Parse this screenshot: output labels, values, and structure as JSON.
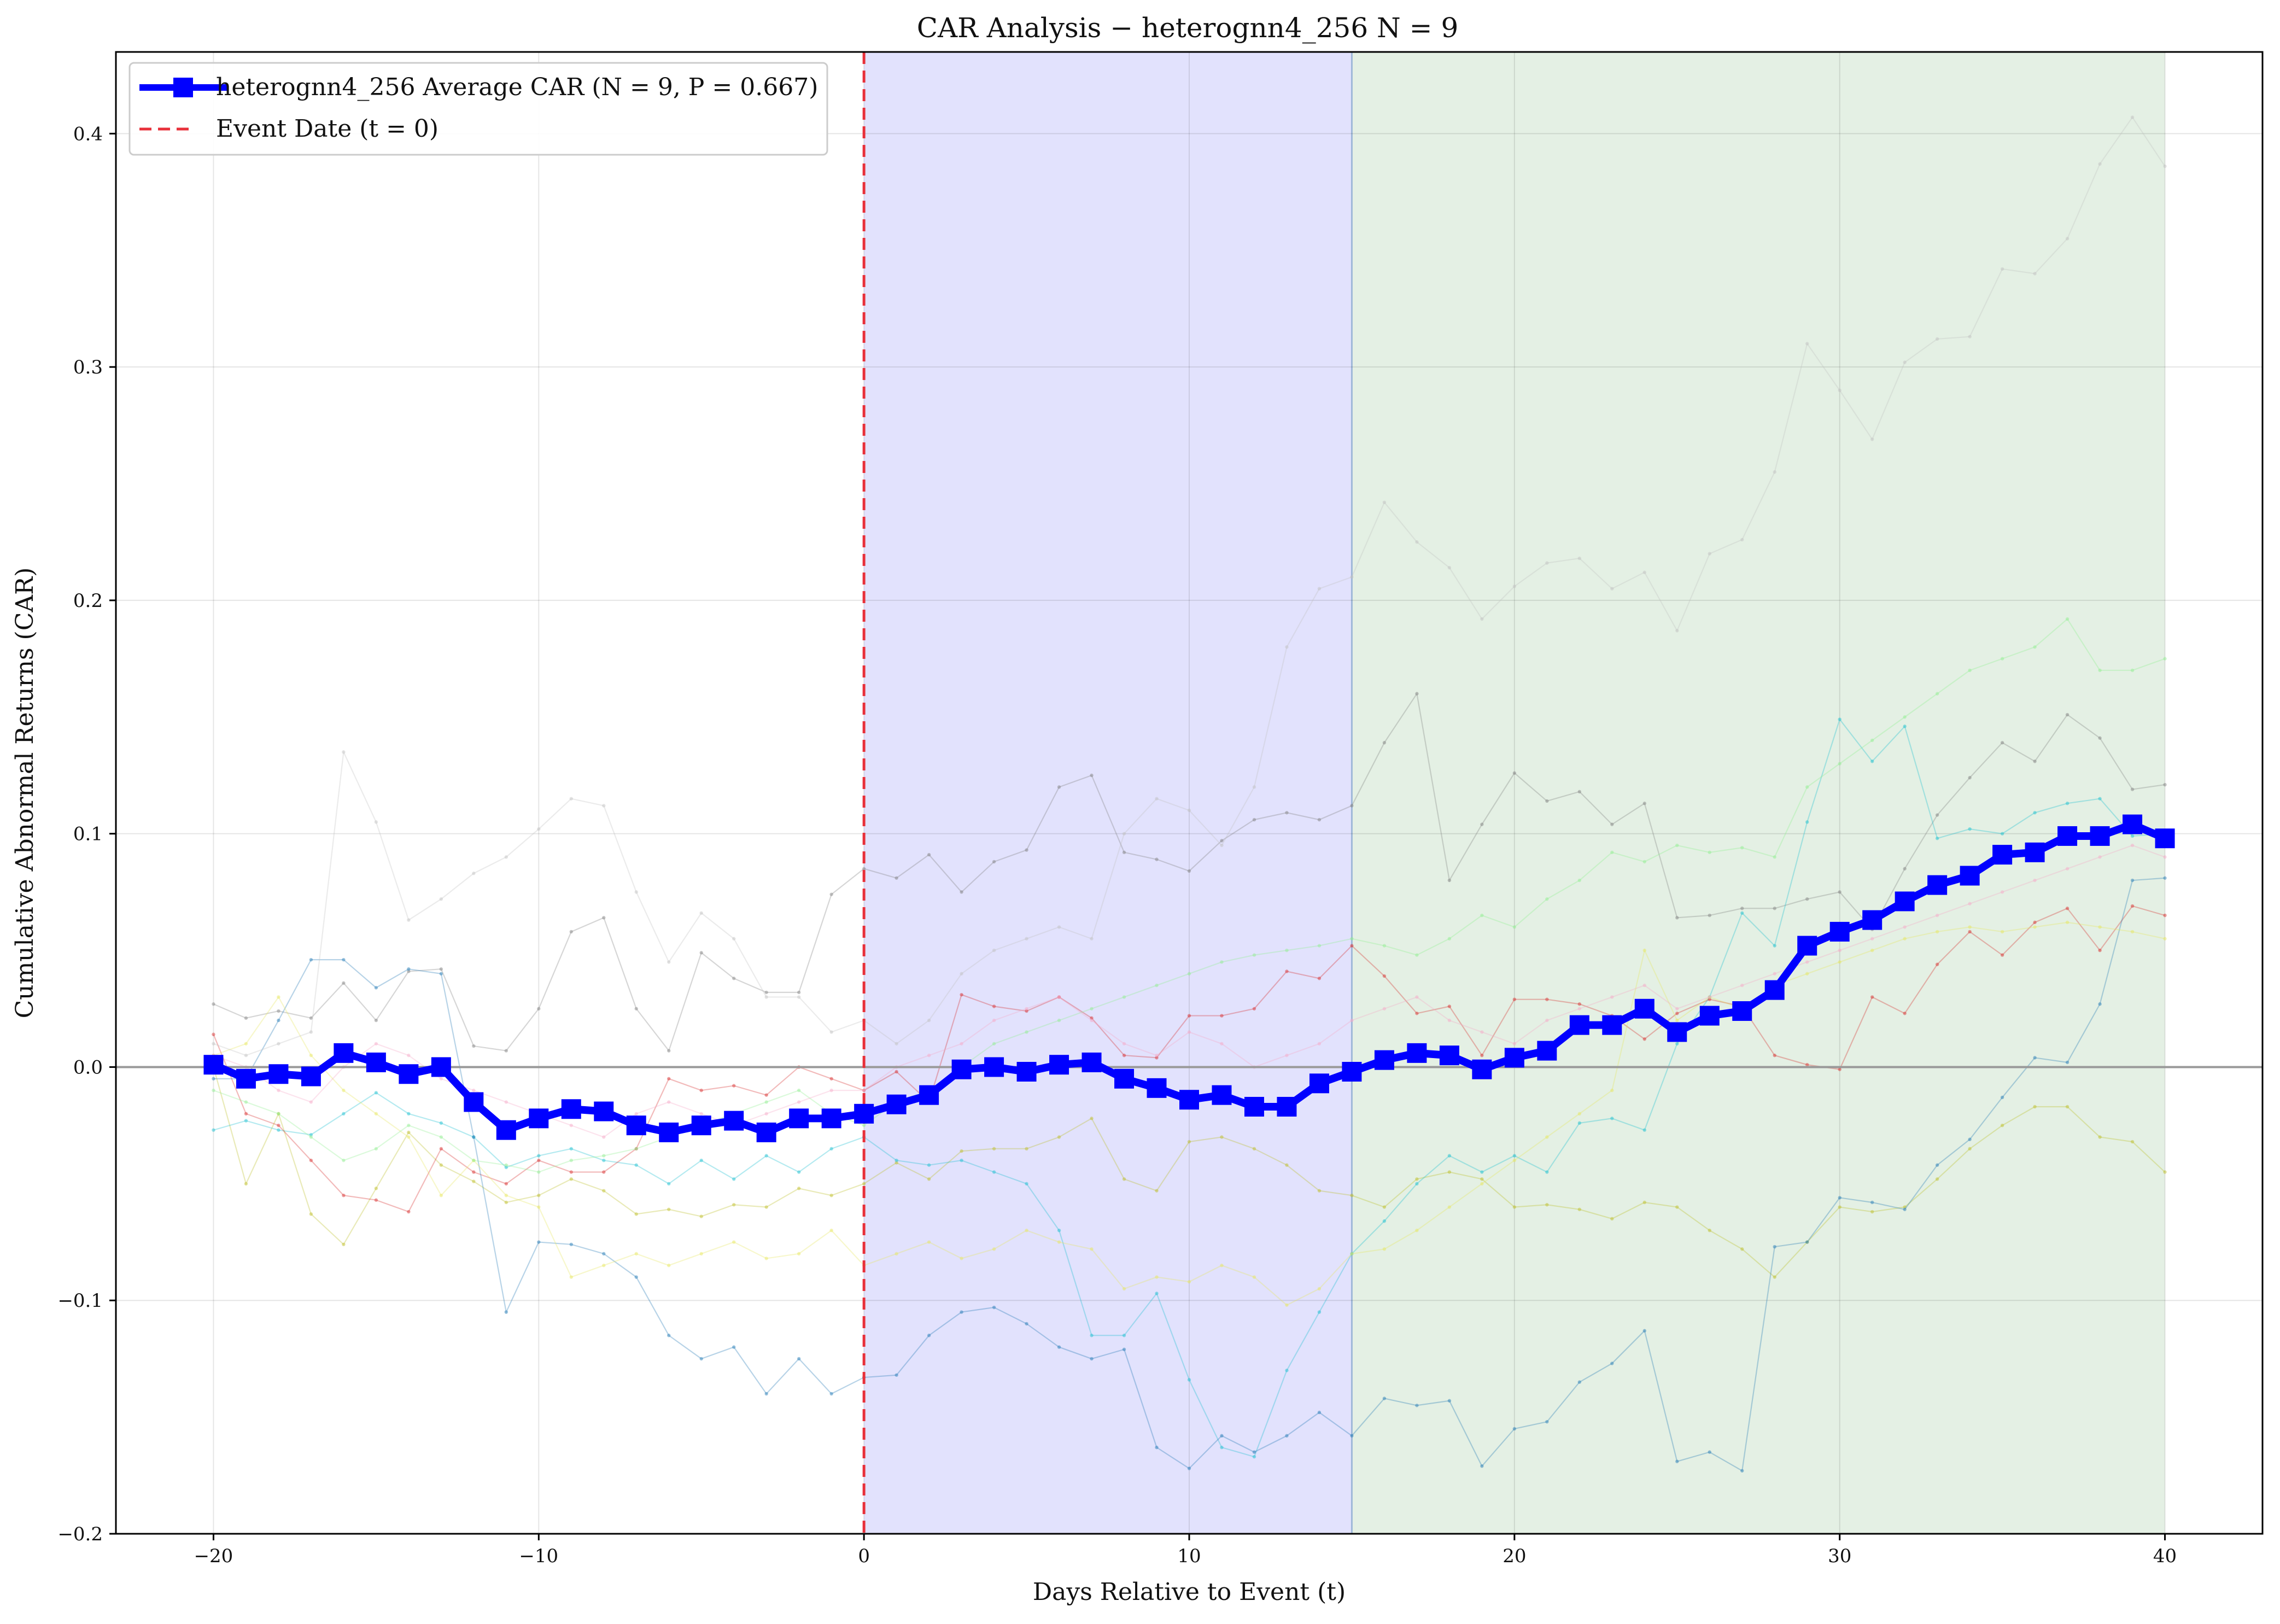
{
  "chart_data": {
    "type": "line",
    "title": "CAR Analysis − heterognn4_256    N = 9",
    "xlabel": "Days Relative to Event (t)",
    "ylabel": "Cumulative Abnormal Returns (CAR)",
    "xlim": [
      -23,
      43
    ],
    "ylim": [
      -0.2,
      0.435
    ],
    "xticks": [
      -20,
      -10,
      0,
      10,
      20,
      30,
      40
    ],
    "xtick_labels": [
      "−20",
      "−10",
      "0",
      "10",
      "20",
      "30",
      "40"
    ],
    "yticks": [
      -0.2,
      -0.1,
      0.0,
      0.1,
      0.2,
      0.3,
      0.4
    ],
    "ytick_labels": [
      "−0.2",
      "−0.1",
      "0.0",
      "0.1",
      "0.2",
      "0.3",
      "0.4"
    ],
    "grid": true,
    "legend_position": "top-left",
    "legend": [
      {
        "label": "heterognn4_256 Average CAR    (N = 9, P = 0.667)",
        "color": "#0000ff",
        "style": "solid-square-marker"
      },
      {
        "label": "Event Date    (t = 0)",
        "color": "#e8303a",
        "style": "dashed"
      }
    ],
    "event_line": {
      "x": 0,
      "color": "#e8303a"
    },
    "zero_line": {
      "y": 0,
      "color": "#999999"
    },
    "shaded_regions": [
      {
        "x0": 0,
        "x1": 15,
        "color": "#e2e2fd"
      },
      {
        "x0": 15,
        "x1": 40,
        "color": "#e4f0e4"
      }
    ],
    "average_series": {
      "name": "heterognn4_256 Average CAR",
      "color": "#0000ff",
      "x": [
        -20,
        -19,
        -18,
        -17,
        -16,
        -15,
        -14,
        -13,
        -12,
        -11,
        -10,
        -9,
        -8,
        -7,
        -6,
        -5,
        -4,
        -3,
        -2,
        -1,
        0,
        1,
        2,
        3,
        4,
        5,
        6,
        7,
        8,
        9,
        10,
        11,
        12,
        13,
        14,
        15,
        16,
        17,
        18,
        19,
        20,
        21,
        22,
        23,
        24,
        25,
        26,
        27,
        28,
        29,
        30,
        31,
        32,
        33,
        34,
        35,
        36,
        37,
        38,
        39,
        40
      ],
      "y": [
        0.001,
        -0.005,
        -0.003,
        -0.004,
        0.006,
        0.002,
        -0.003,
        0.0,
        -0.015,
        -0.027,
        -0.022,
        -0.018,
        -0.019,
        -0.025,
        -0.028,
        -0.025,
        -0.023,
        -0.028,
        -0.022,
        -0.022,
        -0.02,
        -0.016,
        -0.012,
        -0.001,
        0.0,
        -0.002,
        0.001,
        0.002,
        -0.005,
        -0.009,
        -0.014,
        -0.012,
        -0.017,
        -0.017,
        -0.007,
        -0.002,
        0.003,
        0.006,
        0.005,
        -0.001,
        0.004,
        0.007,
        0.018,
        0.018,
        0.025,
        0.015,
        0.022,
        0.024,
        0.033,
        0.052,
        0.058,
        0.063,
        0.071,
        0.078,
        0.082,
        0.091,
        0.092,
        0.099,
        0.099,
        0.104,
        0.098
      ]
    },
    "individual_series": [
      {
        "color": "#7f7f7f",
        "y": [
          0.027,
          0.021,
          0.024,
          0.021,
          0.036,
          0.02,
          0.041,
          0.042,
          0.009,
          0.007,
          0.025,
          0.058,
          0.064,
          0.025,
          0.007,
          0.049,
          0.038,
          0.032,
          0.032,
          0.074,
          0.085,
          0.081,
          0.091,
          0.075,
          0.088,
          0.093,
          0.12,
          0.125,
          0.092,
          0.089,
          0.084,
          0.097,
          0.106,
          0.109,
          0.106,
          0.112,
          0.139,
          0.16,
          0.08,
          0.104,
          0.126,
          0.114,
          0.118,
          0.104,
          0.113,
          0.064,
          0.065,
          0.068,
          0.068,
          0.072,
          0.075,
          0.059,
          0.085,
          0.108,
          0.124,
          0.139,
          0.131,
          0.151,
          0.141,
          0.119,
          0.121
        ]
      },
      {
        "color": "#bcbd22",
        "y": [
          0.0,
          -0.05,
          -0.02,
          -0.063,
          -0.076,
          -0.052,
          -0.028,
          -0.042,
          -0.049,
          -0.058,
          -0.055,
          -0.048,
          -0.053,
          -0.063,
          -0.061,
          -0.064,
          -0.059,
          -0.06,
          -0.052,
          -0.055,
          -0.05,
          -0.041,
          -0.048,
          -0.036,
          -0.035,
          -0.035,
          -0.03,
          -0.022,
          -0.048,
          -0.053,
          -0.032,
          -0.03,
          -0.035,
          -0.042,
          -0.053,
          -0.055,
          -0.06,
          -0.048,
          -0.045,
          -0.048,
          -0.06,
          -0.059,
          -0.061,
          -0.065,
          -0.058,
          -0.06,
          -0.07,
          -0.078,
          -0.09,
          -0.075,
          -0.06,
          -0.062,
          -0.06,
          -0.048,
          -0.035,
          -0.025,
          -0.017,
          -0.017,
          -0.03,
          -0.032,
          -0.045
        ]
      },
      {
        "color": "#17becf",
        "y": [
          -0.027,
          -0.023,
          -0.027,
          -0.029,
          -0.02,
          -0.011,
          -0.02,
          -0.024,
          -0.03,
          -0.043,
          -0.038,
          -0.035,
          -0.04,
          -0.042,
          -0.05,
          -0.04,
          -0.048,
          -0.038,
          -0.045,
          -0.035,
          -0.03,
          -0.04,
          -0.042,
          -0.04,
          -0.045,
          -0.05,
          -0.07,
          -0.115,
          -0.115,
          -0.097,
          -0.134,
          -0.163,
          -0.167,
          -0.13,
          -0.105,
          -0.08,
          -0.066,
          -0.05,
          -0.038,
          -0.045,
          -0.038,
          -0.045,
          -0.024,
          -0.022,
          -0.027,
          0.01,
          0.03,
          0.066,
          0.052,
          0.105,
          0.149,
          0.131,
          0.146,
          0.098,
          0.102,
          0.1,
          0.109,
          0.113,
          0.115,
          0.099,
          0.1
        ]
      },
      {
        "color": "#d62728",
        "y": [
          0.014,
          -0.02,
          -0.025,
          -0.04,
          -0.055,
          -0.057,
          -0.062,
          -0.035,
          -0.045,
          -0.05,
          -0.04,
          -0.045,
          -0.045,
          -0.035,
          -0.005,
          -0.01,
          -0.008,
          -0.012,
          0.0,
          -0.005,
          -0.01,
          -0.002,
          -0.015,
          0.031,
          0.026,
          0.024,
          0.03,
          0.021,
          0.005,
          0.004,
          0.022,
          0.022,
          0.025,
          0.041,
          0.038,
          0.052,
          0.039,
          0.023,
          0.026,
          0.005,
          0.029,
          0.029,
          0.027,
          0.022,
          0.012,
          0.023,
          0.029,
          0.026,
          0.005,
          0.001,
          -0.001,
          0.03,
          0.023,
          0.044,
          0.058,
          0.048,
          0.062,
          0.068,
          0.05,
          0.069,
          0.065
        ]
      },
      {
        "color": "#1f77b4",
        "y": [
          -0.005,
          -0.005,
          0.02,
          0.046,
          0.046,
          0.034,
          0.042,
          0.04,
          -0.03,
          -0.105,
          -0.075,
          -0.076,
          -0.08,
          -0.09,
          -0.115,
          -0.125,
          -0.12,
          -0.14,
          -0.125,
          -0.14,
          -0.133,
          -0.132,
          -0.115,
          -0.105,
          -0.103,
          -0.11,
          -0.12,
          -0.125,
          -0.121,
          -0.163,
          -0.172,
          -0.158,
          -0.165,
          -0.158,
          -0.148,
          -0.158,
          -0.142,
          -0.145,
          -0.143,
          -0.171,
          -0.155,
          -0.152,
          -0.135,
          -0.127,
          -0.113,
          -0.169,
          -0.165,
          -0.173,
          -0.077,
          -0.075,
          -0.056,
          -0.058,
          -0.061,
          -0.042,
          -0.031,
          -0.013,
          0.004,
          0.002,
          0.027,
          0.08,
          0.081
        ]
      },
      {
        "color": "#e6e65c",
        "y": [
          0.005,
          0.01,
          0.03,
          0.005,
          -0.01,
          -0.02,
          -0.03,
          -0.055,
          -0.04,
          -0.055,
          -0.06,
          -0.09,
          -0.085,
          -0.08,
          -0.085,
          -0.08,
          -0.075,
          -0.082,
          -0.08,
          -0.07,
          -0.085,
          -0.08,
          -0.075,
          -0.082,
          -0.078,
          -0.07,
          -0.075,
          -0.078,
          -0.095,
          -0.09,
          -0.092,
          -0.085,
          -0.09,
          -0.102,
          -0.095,
          -0.08,
          -0.078,
          -0.07,
          -0.06,
          -0.05,
          -0.04,
          -0.03,
          -0.02,
          -0.01,
          0.05,
          0.02,
          0.03,
          0.025,
          0.035,
          0.04,
          0.045,
          0.05,
          0.055,
          0.058,
          0.06,
          0.058,
          0.06,
          0.062,
          0.06,
          0.058,
          0.055
        ]
      },
      {
        "color": "#c0c0c0",
        "y": [
          0.01,
          0.005,
          0.01,
          0.015,
          0.135,
          0.105,
          0.063,
          0.072,
          0.083,
          0.09,
          0.102,
          0.115,
          0.112,
          0.075,
          0.045,
          0.066,
          0.055,
          0.03,
          0.03,
          0.015,
          0.02,
          0.01,
          0.02,
          0.04,
          0.05,
          0.055,
          0.06,
          0.055,
          0.1,
          0.115,
          0.11,
          0.095,
          0.12,
          0.18,
          0.205,
          0.21,
          0.242,
          0.225,
          0.214,
          0.192,
          0.206,
          0.216,
          0.218,
          0.205,
          0.212,
          0.187,
          0.22,
          0.226,
          0.255,
          0.31,
          0.29,
          0.269,
          0.302,
          0.312,
          0.313,
          0.342,
          0.34,
          0.355,
          0.387,
          0.407,
          0.386
        ]
      },
      {
        "color": "#90ee90",
        "y": [
          -0.01,
          -0.015,
          -0.02,
          -0.03,
          -0.04,
          -0.035,
          -0.025,
          -0.03,
          -0.04,
          -0.042,
          -0.045,
          -0.04,
          -0.038,
          -0.035,
          -0.03,
          -0.025,
          -0.02,
          -0.015,
          -0.01,
          -0.02,
          -0.025,
          -0.015,
          -0.01,
          0.0,
          0.01,
          0.015,
          0.02,
          0.025,
          0.03,
          0.035,
          0.04,
          0.045,
          0.048,
          0.05,
          0.052,
          0.055,
          0.052,
          0.048,
          0.055,
          0.065,
          0.06,
          0.072,
          0.08,
          0.092,
          0.088,
          0.095,
          0.092,
          0.094,
          0.09,
          0.12,
          0.13,
          0.14,
          0.15,
          0.16,
          0.17,
          0.175,
          0.18,
          0.192,
          0.17,
          0.17,
          0.175
        ]
      },
      {
        "color": "#f7a8c8",
        "y": [
          0.005,
          0.0,
          -0.01,
          -0.015,
          0.0,
          0.01,
          0.005,
          -0.005,
          -0.01,
          -0.015,
          -0.02,
          -0.025,
          -0.03,
          -0.02,
          -0.015,
          -0.02,
          -0.025,
          -0.02,
          -0.015,
          -0.01,
          -0.01,
          0.0,
          0.005,
          0.01,
          0.02,
          0.025,
          0.03,
          0.02,
          0.01,
          0.005,
          0.015,
          0.01,
          0.0,
          0.005,
          0.01,
          0.02,
          0.025,
          0.03,
          0.02,
          0.015,
          0.01,
          0.02,
          0.025,
          0.03,
          0.035,
          0.025,
          0.03,
          0.035,
          0.04,
          0.045,
          0.05,
          0.055,
          0.06,
          0.065,
          0.07,
          0.075,
          0.08,
          0.085,
          0.09,
          0.095,
          0.09
        ]
      }
    ]
  }
}
